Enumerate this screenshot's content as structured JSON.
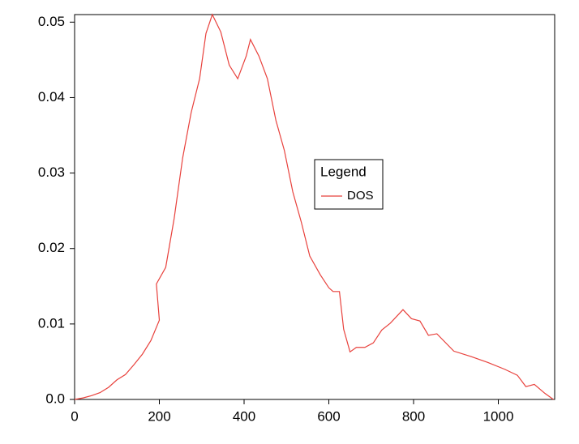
{
  "chart_data": {
    "type": "line",
    "x": [
      0,
      20,
      40,
      60,
      80,
      100,
      120,
      140,
      160,
      180,
      200,
      193,
      215,
      235,
      255,
      275,
      295,
      310,
      325,
      345,
      365,
      385,
      405,
      415,
      435,
      455,
      475,
      495,
      515,
      535,
      555,
      580,
      600,
      610,
      625,
      635,
      650,
      665,
      685,
      705,
      725,
      745,
      775,
      795,
      815,
      835,
      855,
      895,
      935,
      975,
      1015,
      1045,
      1065,
      1085,
      1110,
      1130
    ],
    "series": [
      {
        "name": "DOS",
        "color": "#e8413c",
        "values": [
          0,
          0.0002,
          0.0005,
          0.0009,
          0.0016,
          0.0026,
          0.0033,
          0.0046,
          0.006,
          0.0078,
          0.0105,
          0.0153,
          0.0175,
          0.024,
          0.032,
          0.038,
          0.0425,
          0.0485,
          0.051,
          0.0487,
          0.0443,
          0.0425,
          0.0455,
          0.0477,
          0.0455,
          0.0425,
          0.037,
          0.033,
          0.0275,
          0.0235,
          0.019,
          0.0165,
          0.0148,
          0.0143,
          0.0143,
          0.0093,
          0.0063,
          0.0069,
          0.0069,
          0.0075,
          0.0092,
          0.0101,
          0.0119,
          0.0107,
          0.0104,
          0.0085,
          0.0087,
          0.0064,
          0.0057,
          0.0049,
          0.004,
          0.0032,
          0.0017,
          0.002,
          0.0008,
          0
        ]
      }
    ],
    "xlim": [
      0,
      1133
    ],
    "xticks": [
      0,
      200,
      400,
      600,
      800,
      1000
    ],
    "ylim": [
      0,
      0.051
    ],
    "yticks": [
      {
        "value": 0,
        "label": "0.0"
      },
      0.01,
      0.02,
      0.03,
      0.04,
      0.05
    ],
    "legend": {
      "title": "Legend",
      "position": "center"
    }
  }
}
